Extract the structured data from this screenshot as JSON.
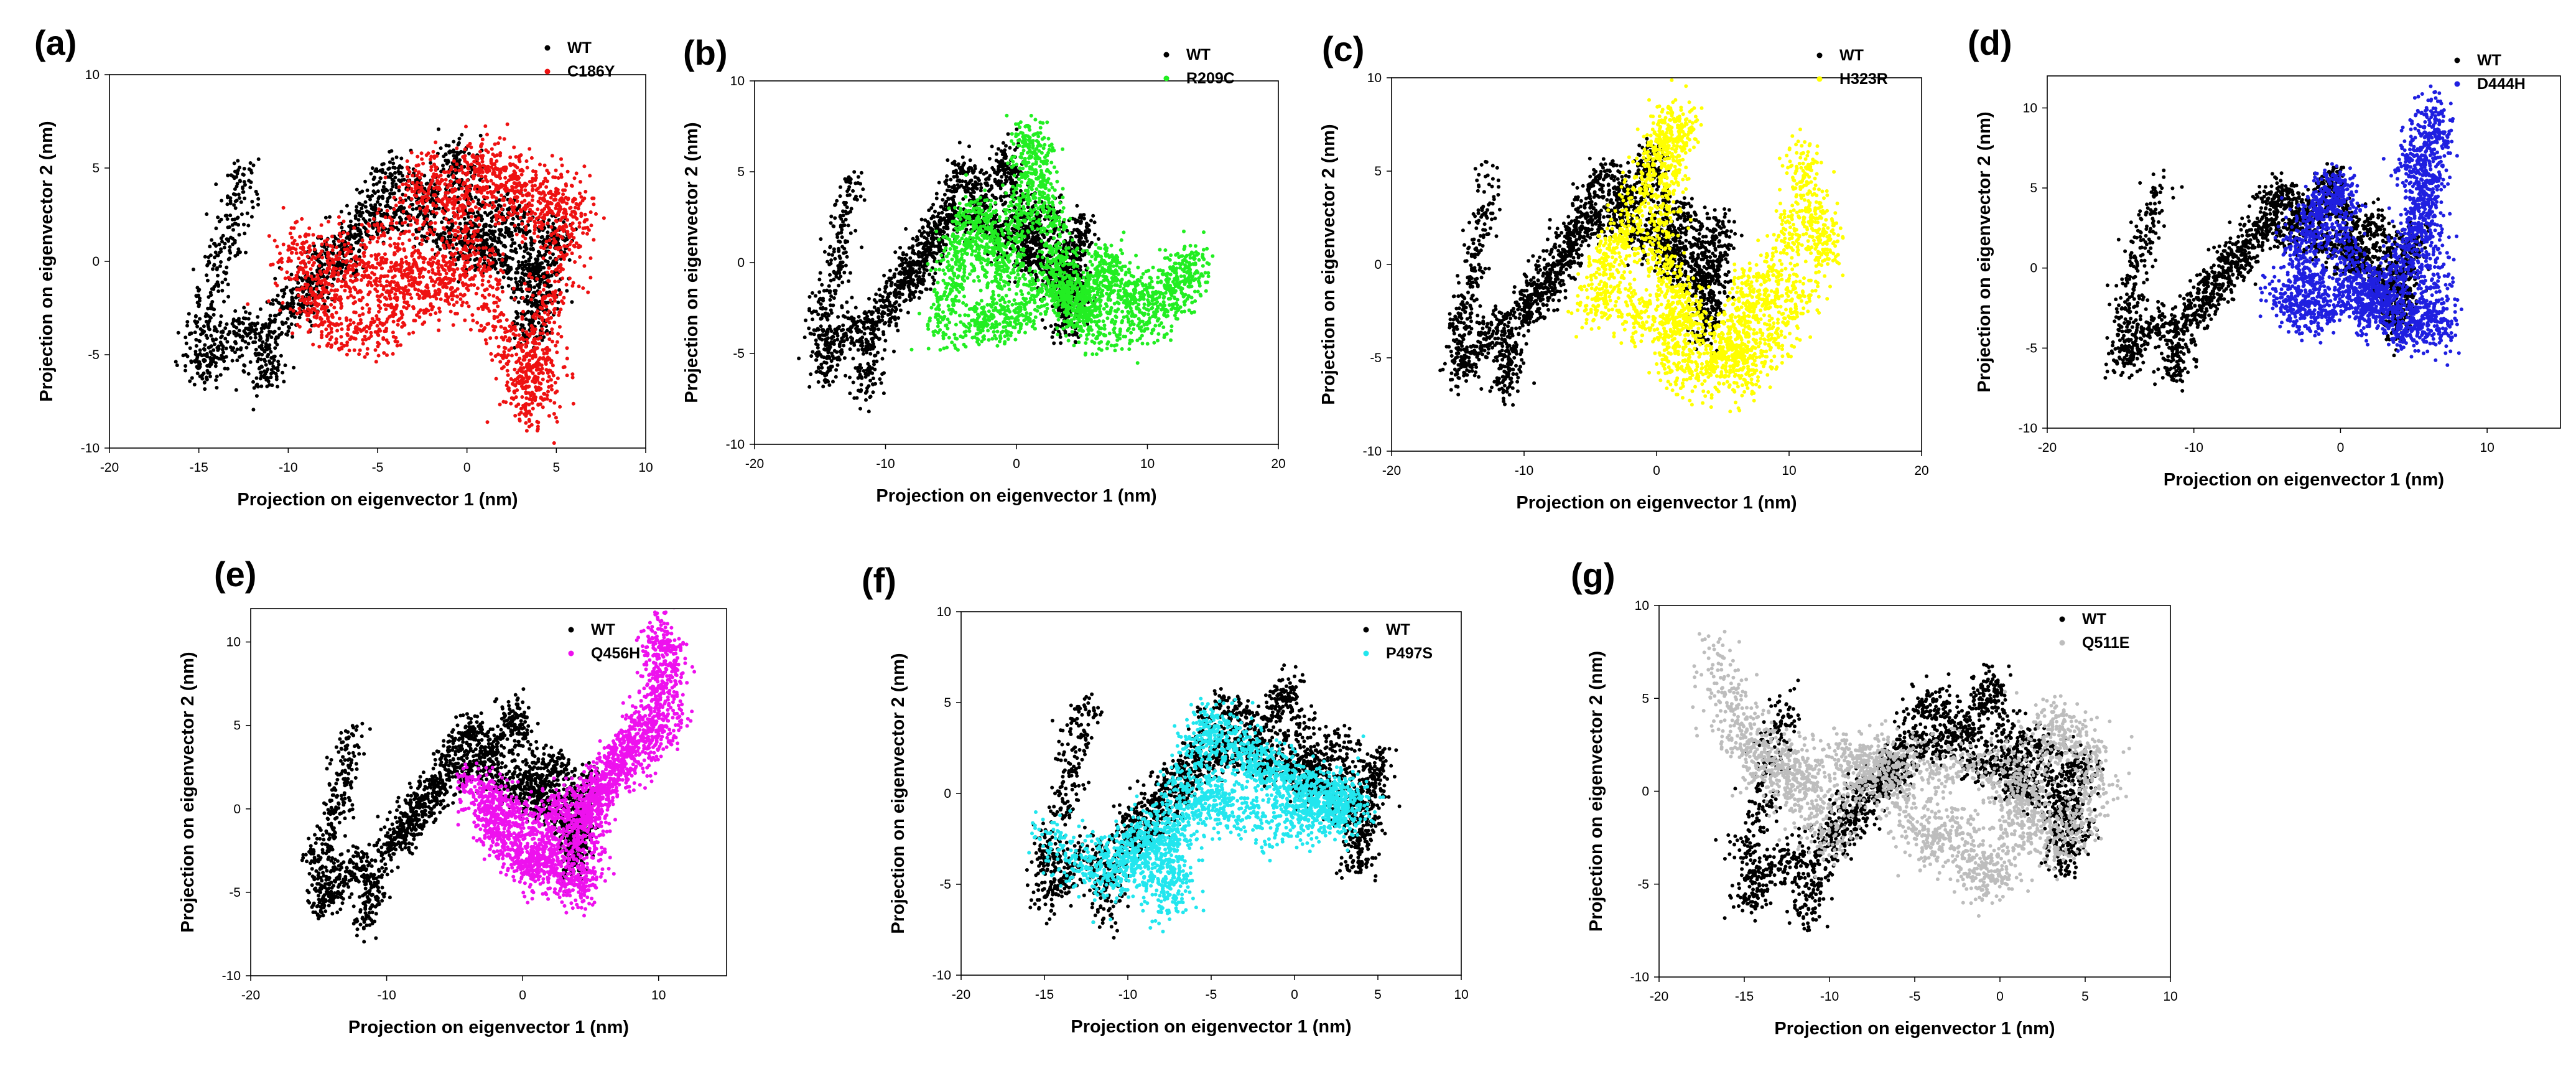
{
  "figure": {
    "common_xlabel": "Projection on eigenvector 1 (nm)",
    "common_ylabel": "Projection on eigenvector 2 (nm)",
    "wt_color": "#000000"
  },
  "chart_data": [
    {
      "panel": "(a)",
      "type": "scatter",
      "xlabel": "Projection on eigenvector 1 (nm)",
      "ylabel": "Projection on eigenvector 2 (nm)",
      "xlim": [
        -20,
        10
      ],
      "ylim": [
        -10,
        10
      ],
      "xticks": [
        -20,
        -15,
        -10,
        -5,
        0,
        5,
        10
      ],
      "yticks": [
        -10,
        -5,
        0,
        5,
        10
      ],
      "series": [
        {
          "name": "WT",
          "color": "#000000"
        },
        {
          "name": "C186Y",
          "color": "#ee1111",
          "trace": [
            [
              -10,
              -1
            ],
            [
              -9,
              1
            ],
            [
              -8,
              -3
            ],
            [
              -7,
              1
            ],
            [
              -6,
              -2
            ],
            [
              -5,
              2
            ],
            [
              -4,
              -3
            ],
            [
              -3,
              3
            ],
            [
              -2,
              5
            ],
            [
              -1,
              2
            ],
            [
              0,
              4
            ],
            [
              1,
              6
            ],
            [
              2,
              3
            ],
            [
              3,
              5
            ],
            [
              4,
              2
            ],
            [
              5,
              4
            ],
            [
              6,
              2
            ],
            [
              5,
              -1
            ],
            [
              4,
              -4
            ],
            [
              3,
              -6
            ],
            [
              3.5,
              -8
            ],
            [
              4.5,
              -6
            ],
            [
              2,
              -4
            ],
            [
              1,
              -1
            ],
            [
              0,
              1
            ],
            [
              -1,
              -1
            ],
            [
              -2,
              -2
            ],
            [
              -3,
              0
            ],
            [
              -5,
              -4
            ],
            [
              -7,
              -4
            ],
            [
              -9,
              -2
            ]
          ]
        }
      ]
    },
    {
      "panel": "(b)",
      "type": "scatter",
      "xlabel": "Projection on eigenvector 1 (nm)",
      "ylabel": "Projection on eigenvector 2 (nm)",
      "xlim": [
        -20,
        20
      ],
      "ylim": [
        -10,
        10
      ],
      "xticks": [
        -20,
        -10,
        0,
        10,
        20
      ],
      "yticks": [
        -10,
        -5,
        0,
        5,
        10
      ],
      "series": [
        {
          "name": "WT",
          "color": "#000000"
        },
        {
          "name": "R209C",
          "color": "#22ee22",
          "trace": [
            [
              -6,
              -4
            ],
            [
              -5,
              -1
            ],
            [
              -4,
              1
            ],
            [
              -3,
              3
            ],
            [
              -2,
              1
            ],
            [
              -1,
              -1
            ],
            [
              0,
              2
            ],
            [
              1,
              5
            ],
            [
              1,
              7
            ],
            [
              2,
              4
            ],
            [
              3,
              1
            ],
            [
              4,
              -2
            ],
            [
              5,
              -3
            ],
            [
              6,
              -1
            ],
            [
              7,
              0
            ],
            [
              8,
              -2
            ],
            [
              10,
              -2
            ],
            [
              12,
              -1
            ],
            [
              14,
              0
            ],
            [
              11,
              -3
            ],
            [
              7,
              -4
            ],
            [
              4,
              -2
            ],
            [
              2,
              -1
            ],
            [
              0,
              -3
            ],
            [
              -2,
              -3
            ],
            [
              -4,
              -4
            ]
          ]
        }
      ]
    },
    {
      "panel": "(c)",
      "type": "scatter",
      "xlabel": "Projection on eigenvector 1 (nm)",
      "ylabel": "Projection on eigenvector 2 (nm)",
      "xlim": [
        -20,
        20
      ],
      "ylim": [
        -10,
        10
      ],
      "xticks": [
        -20,
        -10,
        0,
        10,
        20
      ],
      "yticks": [
        -10,
        -5,
        0,
        5,
        10
      ],
      "series": [
        {
          "name": "WT",
          "color": "#000000"
        },
        {
          "name": "H323R",
          "color": "#ffff00",
          "trace": [
            [
              -5,
              -3
            ],
            [
              -4,
              -1
            ],
            [
              -3,
              1
            ],
            [
              -2,
              2
            ],
            [
              -1,
              4
            ],
            [
              0,
              6
            ],
            [
              1,
              7
            ],
            [
              2,
              8
            ],
            [
              1,
              4
            ],
            [
              0,
              1
            ],
            [
              1,
              -1
            ],
            [
              2,
              -3
            ],
            [
              1,
              -5
            ],
            [
              3,
              -6
            ],
            [
              5,
              -5
            ],
            [
              7,
              -4
            ],
            [
              6,
              -2
            ],
            [
              8,
              -1
            ],
            [
              9,
              -2
            ],
            [
              10,
              1
            ],
            [
              11,
              3
            ],
            [
              11,
              6
            ],
            [
              12,
              2
            ],
            [
              13,
              1
            ],
            [
              10,
              -3
            ],
            [
              8,
              -5
            ],
            [
              6,
              -6
            ],
            [
              4,
              -4
            ],
            [
              2,
              -2
            ],
            [
              -1,
              -3
            ],
            [
              -3,
              -2
            ]
          ]
        }
      ]
    },
    {
      "panel": "(d)",
      "type": "scatter",
      "xlabel": "Projection on eigenvector 1 (nm)",
      "ylabel": "Projection on eigenvector 2 (nm)",
      "xlim": [
        -20,
        15
      ],
      "ylim": [
        -10,
        12
      ],
      "xticks": [
        -20,
        -10,
        0,
        10
      ],
      "yticks": [
        -10,
        -5,
        0,
        5,
        10
      ],
      "series": [
        {
          "name": "WT",
          "color": "#000000"
        },
        {
          "name": "D444H",
          "color": "#1f1fe0",
          "trace": [
            [
              -4,
              -1
            ],
            [
              -3,
              -3
            ],
            [
              -2,
              -1
            ],
            [
              -3,
              1
            ],
            [
              -2,
              3
            ],
            [
              -1,
              4
            ],
            [
              0,
              5
            ],
            [
              0,
              2
            ],
            [
              1,
              -1
            ],
            [
              2,
              -3
            ],
            [
              3,
              -2
            ],
            [
              4,
              0
            ],
            [
              5,
              2
            ],
            [
              6,
              4
            ],
            [
              5,
              6
            ],
            [
              6,
              8
            ],
            [
              6.5,
              10
            ],
            [
              6,
              5
            ],
            [
              6,
              1
            ],
            [
              6.5,
              -2
            ],
            [
              6.5,
              -4
            ],
            [
              5,
              -3
            ],
            [
              4,
              -4
            ],
            [
              2,
              -1
            ],
            [
              0,
              -2
            ],
            [
              -2,
              -3
            ]
          ]
        }
      ]
    },
    {
      "panel": "(e)",
      "type": "scatter",
      "xlabel": "Projection on eigenvector 1 (nm)",
      "ylabel": "Projection on eigenvector 2 (nm)",
      "xlim": [
        -20,
        15
      ],
      "ylim": [
        -10,
        12
      ],
      "xticks": [
        -20,
        -10,
        0,
        10
      ],
      "yticks": [
        -10,
        -5,
        0,
        5,
        10
      ],
      "series": [
        {
          "name": "WT",
          "color": "#000000"
        },
        {
          "name": "Q456H",
          "color": "#ee11ee",
          "trace": [
            [
              -4,
              2
            ],
            [
              -3,
              0
            ],
            [
              -2,
              -1
            ],
            [
              -1,
              -2
            ],
            [
              0,
              -3
            ],
            [
              1,
              -4
            ],
            [
              2,
              -2
            ],
            [
              3,
              -4
            ],
            [
              4,
              -5
            ],
            [
              5,
              -3
            ],
            [
              4,
              -1
            ],
            [
              5,
              0
            ],
            [
              6,
              1
            ],
            [
              7,
              3
            ],
            [
              8,
              4
            ],
            [
              9,
              5
            ],
            [
              10,
              7
            ],
            [
              10.5,
              9
            ],
            [
              10,
              11
            ],
            [
              11,
              5
            ],
            [
              9,
              4
            ],
            [
              7,
              2
            ],
            [
              5,
              1
            ],
            [
              3,
              0
            ],
            [
              1,
              -1
            ],
            [
              -1,
              0
            ],
            [
              -3,
              1
            ]
          ]
        }
      ]
    },
    {
      "panel": "(f)",
      "type": "scatter",
      "xlabel": "Projection on eigenvector 1 (nm)",
      "ylabel": "Projection on eigenvector 2 (nm)",
      "xlim": [
        -20,
        10
      ],
      "ylim": [
        -10,
        10
      ],
      "xticks": [
        -20,
        -15,
        -10,
        -5,
        0,
        5,
        10
      ],
      "yticks": [
        -10,
        -5,
        0,
        5,
        10
      ],
      "series": [
        {
          "name": "WT",
          "color": "#000000"
        },
        {
          "name": "P497S",
          "color": "#22e6ee",
          "trace": [
            [
              -15,
              -2
            ],
            [
              -13,
              -4
            ],
            [
              -11,
              -5
            ],
            [
              -10,
              -3
            ],
            [
              -9,
              -2
            ],
            [
              -8,
              -6
            ],
            [
              -7,
              -5
            ],
            [
              -8,
              -3
            ],
            [
              -7,
              0
            ],
            [
              -6,
              2
            ],
            [
              -5,
              4
            ],
            [
              -4,
              3
            ],
            [
              -3,
              2
            ],
            [
              -2,
              1.5
            ],
            [
              -1,
              1
            ],
            [
              0,
              0.5
            ],
            [
              1,
              0
            ],
            [
              2,
              -0.5
            ],
            [
              3,
              -1
            ],
            [
              3.5,
              0
            ],
            [
              2.5,
              -1
            ],
            [
              1,
              -1
            ],
            [
              -1,
              -2
            ],
            [
              -3,
              -1
            ],
            [
              -5,
              0
            ],
            [
              -6,
              -1
            ],
            [
              -8,
              -3
            ],
            [
              -10,
              -4
            ],
            [
              -12,
              -3
            ]
          ]
        }
      ]
    },
    {
      "panel": "(g)",
      "type": "scatter",
      "xlabel": "Projection on eigenvector 1 (nm)",
      "ylabel": "Projection on eigenvector 2 (nm)",
      "xlim": [
        -20,
        10
      ],
      "ylim": [
        -10,
        10
      ],
      "xticks": [
        -20,
        -15,
        -10,
        -5,
        0,
        5,
        10
      ],
      "yticks": [
        -10,
        -5,
        0,
        5,
        10
      ],
      "series": [
        {
          "name": "WT",
          "color": "#000000"
        },
        {
          "name": "Q511E",
          "color": "#bdbdbd",
          "trace": [
            [
              -17,
              8
            ],
            [
              -16,
              5
            ],
            [
              -15,
              3
            ],
            [
              -14,
              1
            ],
            [
              -13,
              2
            ],
            [
              -12,
              1
            ],
            [
              -11,
              -1
            ],
            [
              -10,
              -3
            ],
            [
              -9,
              0
            ],
            [
              -8,
              2
            ],
            [
              -7,
              1
            ],
            [
              -6,
              0
            ],
            [
              -5,
              -2
            ],
            [
              -4,
              -3
            ],
            [
              -3,
              -1
            ],
            [
              -2,
              -3
            ],
            [
              -1,
              -5
            ],
            [
              0,
              -4
            ],
            [
              1,
              -2
            ],
            [
              2,
              1
            ],
            [
              3,
              4
            ],
            [
              4,
              3
            ],
            [
              5,
              2
            ],
            [
              6,
              1
            ],
            [
              5,
              -1
            ],
            [
              4,
              -2
            ],
            [
              3,
              -3
            ],
            [
              2,
              -1
            ],
            [
              1,
              0
            ],
            [
              0,
              1
            ],
            [
              -2,
              2
            ],
            [
              -4,
              1
            ],
            [
              -6,
              2
            ],
            [
              -8,
              1
            ],
            [
              -10,
              2
            ],
            [
              -12,
              0
            ],
            [
              -14,
              2
            ],
            [
              -16,
              4
            ]
          ]
        }
      ]
    }
  ],
  "wt_trace": [
    [
      -12.5,
      5
    ],
    [
      -13,
      3
    ],
    [
      -13.5,
      1
    ],
    [
      -14,
      -1
    ],
    [
      -15,
      -3
    ],
    [
      -14.5,
      -4
    ],
    [
      -15,
      -6
    ],
    [
      -14,
      -5
    ],
    [
      -13,
      -4
    ],
    [
      -12,
      -3
    ],
    [
      -11,
      -5
    ],
    [
      -11.5,
      -7
    ],
    [
      -11,
      -4
    ],
    [
      -10,
      -2
    ],
    [
      -9,
      -1
    ],
    [
      -8,
      0
    ],
    [
      -7,
      1
    ],
    [
      -6,
      2
    ],
    [
      -5,
      4
    ],
    [
      -4,
      5
    ],
    [
      -3,
      4
    ],
    [
      -2,
      3
    ],
    [
      -1,
      5
    ],
    [
      -0.5,
      6
    ],
    [
      0,
      4
    ],
    [
      1,
      2
    ],
    [
      0.5,
      0
    ],
    [
      1.5,
      1
    ],
    [
      2,
      3
    ],
    [
      3,
      2
    ],
    [
      3.5,
      0
    ],
    [
      4,
      -1
    ],
    [
      4.5,
      1
    ],
    [
      5,
      2
    ],
    [
      4.5,
      -1
    ],
    [
      4,
      -3
    ],
    [
      3.5,
      -4
    ],
    [
      4,
      -2
    ],
    [
      3,
      -1
    ],
    [
      2,
      0
    ],
    [
      1,
      1
    ],
    [
      0,
      2
    ],
    [
      -1,
      1
    ],
    [
      -2,
      2
    ],
    [
      -3,
      3
    ],
    [
      -4,
      2
    ],
    [
      -5,
      3
    ],
    [
      -6,
      1
    ],
    [
      -7,
      0
    ],
    [
      -8,
      -1
    ],
    [
      -9,
      -2
    ],
    [
      -10,
      -3
    ]
  ]
}
